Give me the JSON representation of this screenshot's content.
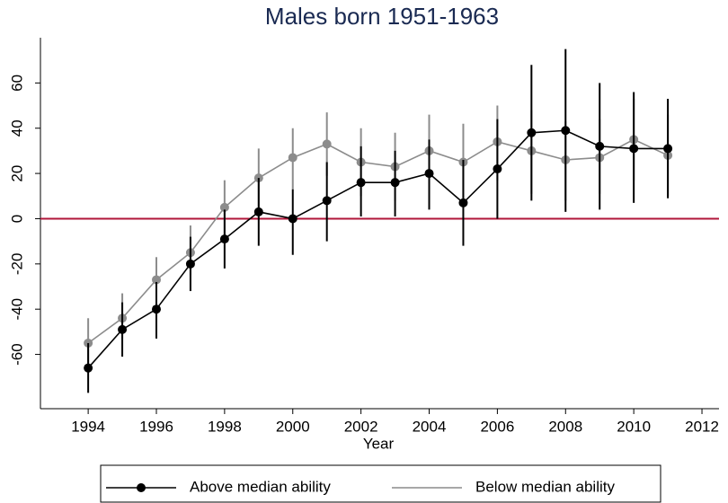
{
  "chart_data": {
    "type": "line",
    "title": "Males born 1951-1963",
    "x_label": "Year",
    "x": [
      1994,
      1995,
      1996,
      1997,
      1998,
      1999,
      2000,
      2001,
      2002,
      2003,
      2004,
      2005,
      2006,
      2007,
      2008,
      2009,
      2010,
      2011
    ],
    "series": [
      {
        "name": "Above median ability",
        "color": "#000000",
        "values": [
          -66,
          -49,
          -40,
          -20,
          -9,
          3,
          0,
          8,
          16,
          16,
          20,
          7,
          22,
          38,
          39,
          32,
          31,
          31
        ],
        "lower": [
          -77,
          -61,
          -53,
          -32,
          -22,
          -12,
          -16,
          -10,
          1,
          1,
          4,
          -12,
          0,
          8,
          3,
          4,
          7,
          9
        ],
        "upper": [
          -55,
          -37,
          -28,
          -8,
          4,
          18,
          13,
          25,
          32,
          30,
          35,
          26,
          44,
          68,
          75,
          60,
          56,
          53
        ]
      },
      {
        "name": "Below median ability",
        "color": "#8c8c8c",
        "values": [
          -55,
          -44,
          -27,
          -15,
          5,
          18,
          27,
          33,
          25,
          23,
          30,
          25,
          34,
          30,
          26,
          27,
          35,
          28
        ],
        "lower": [
          -65,
          -53,
          -37,
          -25,
          -7,
          5,
          13,
          19,
          10,
          8,
          15,
          9,
          17,
          11,
          8,
          11,
          17,
          10
        ],
        "upper": [
          -44,
          -33,
          -17,
          -3,
          17,
          31,
          40,
          47,
          40,
          38,
          46,
          42,
          50,
          48,
          43,
          44,
          53,
          46
        ]
      }
    ],
    "xlim": [
      1992.6,
      2012.5
    ],
    "ylim": [
      -84,
      80
    ],
    "xticks": [
      1994,
      1996,
      1998,
      2000,
      2002,
      2004,
      2006,
      2008,
      2010,
      2012
    ],
    "yticks": [
      -60,
      -40,
      -20,
      0,
      20,
      40,
      60
    ],
    "reference_line": {
      "value": 0,
      "color": "#b0163a"
    },
    "legend": "bottom"
  }
}
